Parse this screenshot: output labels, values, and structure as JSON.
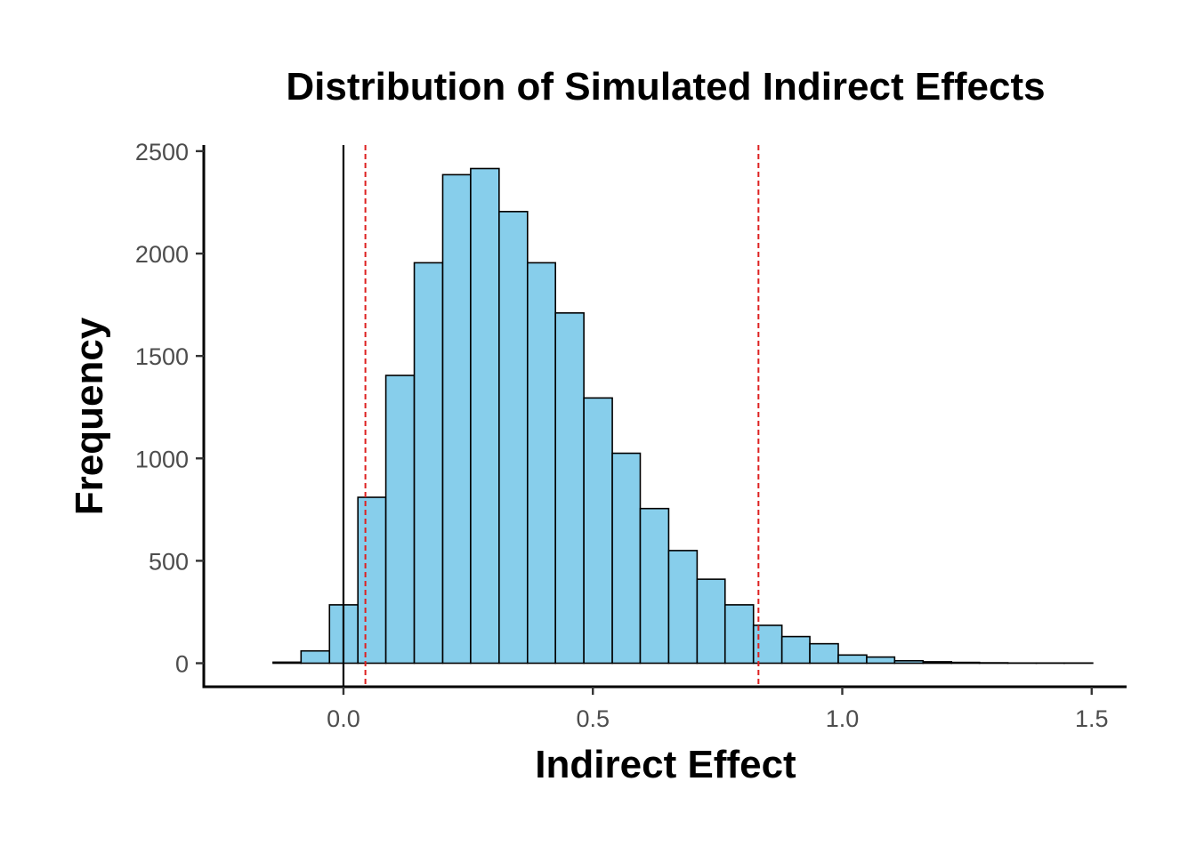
{
  "chart_data": {
    "type": "histogram",
    "title": "Distribution of Simulated Indirect Effects",
    "xlabel": "Indirect Effect",
    "ylabel": "Frequency",
    "xlim": [
      -0.28,
      1.57
    ],
    "ylim": [
      -115,
      2530
    ],
    "x_ticks": [
      0.0,
      0.5,
      1.0,
      1.5
    ],
    "x_tick_labels": [
      "0.0",
      "0.5",
      "1.0",
      "1.5"
    ],
    "y_ticks": [
      0,
      500,
      1000,
      1500,
      2000,
      2500
    ],
    "y_tick_labels": [
      "0",
      "500",
      "1000",
      "1500",
      "2000",
      "2500"
    ],
    "bin_width": 0.0567,
    "bins": [
      {
        "x0": -0.198,
        "x1": -0.141,
        "count": 0
      },
      {
        "x0": -0.141,
        "x1": -0.085,
        "count": 5
      },
      {
        "x0": -0.085,
        "x1": -0.028,
        "count": 60
      },
      {
        "x0": -0.028,
        "x1": 0.029,
        "count": 285
      },
      {
        "x0": 0.029,
        "x1": 0.085,
        "count": 810
      },
      {
        "x0": 0.085,
        "x1": 0.142,
        "count": 1405
      },
      {
        "x0": 0.142,
        "x1": 0.199,
        "count": 1955
      },
      {
        "x0": 0.199,
        "x1": 0.255,
        "count": 2385
      },
      {
        "x0": 0.255,
        "x1": 0.312,
        "count": 2415
      },
      {
        "x0": 0.312,
        "x1": 0.369,
        "count": 2205
      },
      {
        "x0": 0.369,
        "x1": 0.425,
        "count": 1955
      },
      {
        "x0": 0.425,
        "x1": 0.482,
        "count": 1710
      },
      {
        "x0": 0.482,
        "x1": 0.539,
        "count": 1295
      },
      {
        "x0": 0.539,
        "x1": 0.595,
        "count": 1025
      },
      {
        "x0": 0.595,
        "x1": 0.652,
        "count": 755
      },
      {
        "x0": 0.652,
        "x1": 0.709,
        "count": 550
      },
      {
        "x0": 0.709,
        "x1": 0.765,
        "count": 410
      },
      {
        "x0": 0.765,
        "x1": 0.822,
        "count": 285
      },
      {
        "x0": 0.822,
        "x1": 0.879,
        "count": 185
      },
      {
        "x0": 0.879,
        "x1": 0.935,
        "count": 130
      },
      {
        "x0": 0.935,
        "x1": 0.992,
        "count": 95
      },
      {
        "x0": 0.992,
        "x1": 1.049,
        "count": 40
      },
      {
        "x0": 1.049,
        "x1": 1.105,
        "count": 30
      },
      {
        "x0": 1.105,
        "x1": 1.162,
        "count": 12
      },
      {
        "x0": 1.162,
        "x1": 1.219,
        "count": 7
      },
      {
        "x0": 1.219,
        "x1": 1.275,
        "count": 4
      },
      {
        "x0": 1.275,
        "x1": 1.332,
        "count": 2
      },
      {
        "x0": 1.332,
        "x1": 1.389,
        "count": 1
      },
      {
        "x0": 1.389,
        "x1": 1.445,
        "count": 1
      },
      {
        "x0": 1.445,
        "x1": 1.502,
        "count": 1
      }
    ],
    "vlines": [
      {
        "x": 0.0,
        "style": "solid",
        "color": "#000000"
      },
      {
        "x": 0.044,
        "style": "dashed",
        "color": "#dd2020"
      },
      {
        "x": 0.832,
        "style": "dashed",
        "color": "#dd2020"
      }
    ],
    "bar_fill": "#87ceeb",
    "bar_stroke": "#000000",
    "grid": false,
    "legend": "none"
  }
}
